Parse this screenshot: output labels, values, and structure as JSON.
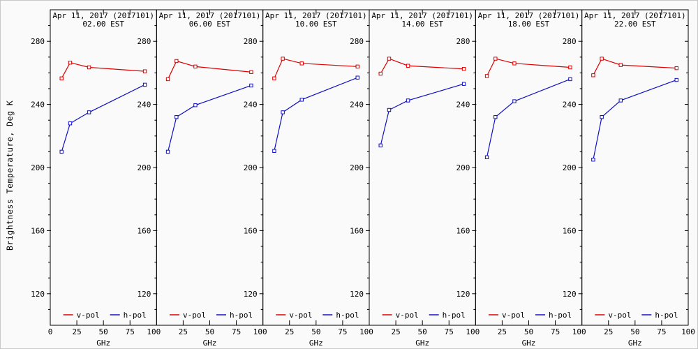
{
  "figure": {
    "background": "#fafafa",
    "axis_color": "#000000"
  },
  "chart_data": {
    "type": "line",
    "title": "Apr 11, 2017 (2017101)",
    "xlabel": "GHz",
    "ylabel": "Brightness Temperature, Deg K",
    "x": [
      10.65,
      18.7,
      36.5,
      89
    ],
    "xlim": [
      0,
      100
    ],
    "ylim": [
      100,
      300
    ],
    "xticks": [
      0,
      25,
      50,
      75,
      100
    ],
    "yticks": [
      120,
      160,
      200,
      240,
      280
    ],
    "y_minor_step": 10,
    "grid": false,
    "legend_position": "bottom-inside",
    "legend": [
      {
        "label": "v-pol",
        "color": "#dd0000"
      },
      {
        "label": "h-pol",
        "color": "#0f0fc4"
      }
    ],
    "marker": "open-square",
    "panels": [
      {
        "time": "02.00 EST",
        "series": [
          {
            "name": "v-pol",
            "color": "#dd0000",
            "values": [
              256.5,
              266.5,
              263.5,
              261.0
            ]
          },
          {
            "name": "h-pol",
            "color": "#0f0fc4",
            "values": [
              210.0,
              228.0,
              235.0,
              252.5
            ]
          }
        ]
      },
      {
        "time": "06.00 EST",
        "series": [
          {
            "name": "v-pol",
            "color": "#dd0000",
            "values": [
              256.0,
              267.5,
              264.0,
              260.5
            ]
          },
          {
            "name": "h-pol",
            "color": "#0f0fc4",
            "values": [
              210.0,
              232.0,
              239.5,
              252.0
            ]
          }
        ]
      },
      {
        "time": "10.00 EST",
        "series": [
          {
            "name": "v-pol",
            "color": "#dd0000",
            "values": [
              256.5,
              269.0,
              266.0,
              264.0
            ]
          },
          {
            "name": "h-pol",
            "color": "#0f0fc4",
            "values": [
              210.5,
              235.0,
              243.0,
              257.0
            ]
          }
        ]
      },
      {
        "time": "14.00 EST",
        "series": [
          {
            "name": "v-pol",
            "color": "#dd0000",
            "values": [
              259.5,
              269.0,
              264.5,
              262.5
            ]
          },
          {
            "name": "h-pol",
            "color": "#0f0fc4",
            "values": [
              214.0,
              236.5,
              242.5,
              253.0
            ]
          }
        ]
      },
      {
        "time": "18.00 EST",
        "series": [
          {
            "name": "v-pol",
            "color": "#dd0000",
            "values": [
              258.0,
              269.0,
              266.0,
              263.5
            ]
          },
          {
            "name": "h-pol",
            "color": "#0f0fc4",
            "values": [
              206.5,
              232.0,
              242.0,
              256.0
            ]
          }
        ]
      },
      {
        "time": "22.00 EST",
        "series": [
          {
            "name": "v-pol",
            "color": "#dd0000",
            "values": [
              258.5,
              269.0,
              265.0,
              263.0
            ]
          },
          {
            "name": "h-pol",
            "color": "#0f0fc4",
            "values": [
              205.0,
              232.0,
              242.5,
              255.5
            ]
          }
        ]
      }
    ]
  }
}
